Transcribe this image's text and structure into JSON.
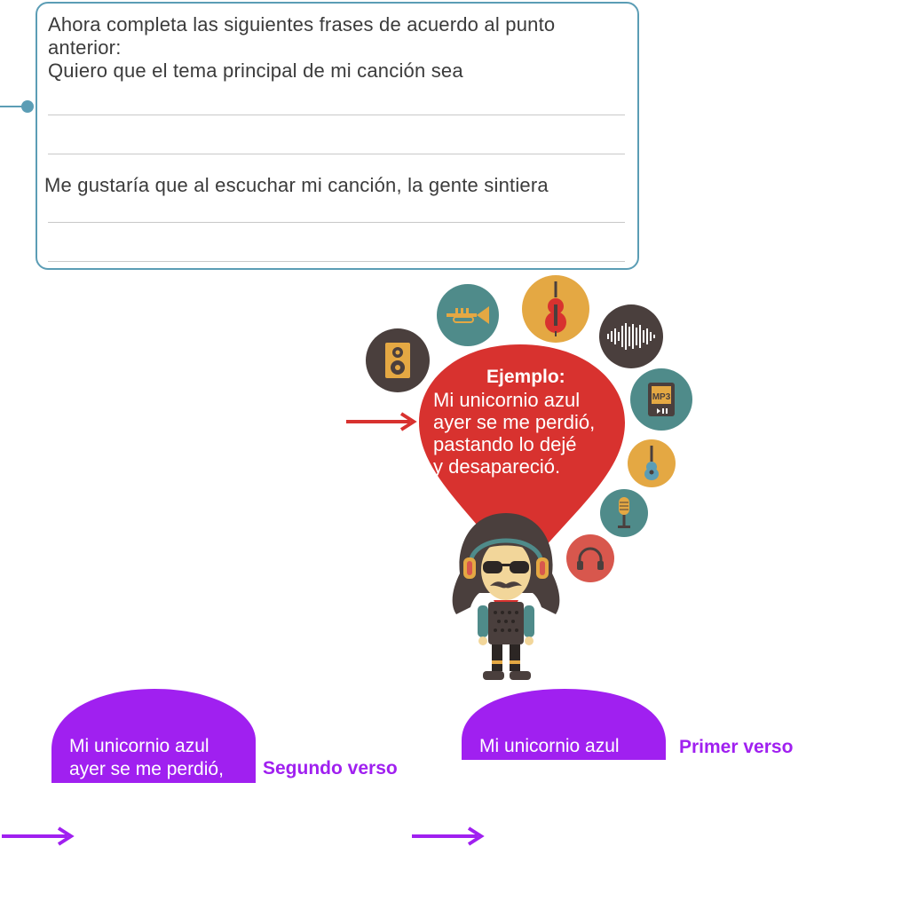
{
  "worksheet": {
    "instruction_line1": "Ahora completa las siguientes frases de acuerdo al punto",
    "instruction_line2": "anterior:",
    "prompt1": "Quiero que el tema principal de mi canción sea",
    "prompt2": "Me gustaría que al escuchar mi canción, la gente sintiera"
  },
  "example": {
    "heading": "Ejemplo:",
    "lines": [
      "Mi unicornio azul",
      "ayer se me perdió,",
      "pastando lo dejé",
      "y desapareció."
    ]
  },
  "verses": {
    "first_text": "Mi unicornio azul",
    "first_label": "Primer verso",
    "second_line1": "Mi unicornio azul",
    "second_line2": "ayer se me perdió,",
    "second_label": "Segundo verso"
  },
  "icons": [
    "speaker-icon",
    "trumpet-icon",
    "violin-icon",
    "sound-wave-icon",
    "mp3-player-icon",
    "ukulele-icon",
    "microphone-icon",
    "headphones-icon"
  ],
  "colors": {
    "frame": "#5b9db5",
    "balloon": "#d8322f",
    "purple": "#a020f0",
    "arrow_red": "#d8322f"
  }
}
